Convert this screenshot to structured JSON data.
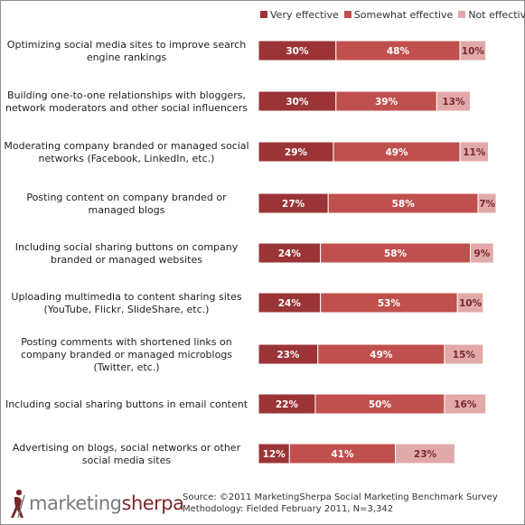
{
  "chart_data": {
    "type": "bar",
    "orientation": "horizontal",
    "stacked": true,
    "categories": [
      [
        "Optimizing social media sites to improve search",
        "engine rankings"
      ],
      [
        "Building one-to-one relationships with bloggers,",
        "network moderators and other social influencers"
      ],
      [
        "Moderating company branded or managed social",
        "networks (Facebook, LinkedIn, etc.)"
      ],
      [
        "Posting content on company branded or",
        "managed blogs"
      ],
      [
        "Including social sharing buttons on company",
        "branded or managed websites"
      ],
      [
        "Uploading multimedia to content sharing sites",
        "(YouTube, Flickr, SlideShare, etc.)"
      ],
      [
        "Posting comments with shortened links on",
        "company branded or managed microblogs",
        "(Twitter, etc.)"
      ],
      [
        "Including social sharing buttons in email content"
      ],
      [
        "Advertising on blogs, social networks or other",
        "social media sites"
      ]
    ],
    "series": [
      {
        "name": "Very effective",
        "color": "#9b3436",
        "values": [
          30,
          30,
          29,
          27,
          24,
          24,
          23,
          22,
          12
        ]
      },
      {
        "name": "Somewhat effective",
        "color": "#c0504d",
        "values": [
          48,
          39,
          49,
          58,
          58,
          53,
          49,
          50,
          41
        ]
      },
      {
        "name": "Not effective",
        "color": "#e1a9aa",
        "values": [
          10,
          13,
          11,
          7,
          9,
          10,
          15,
          16,
          23
        ]
      }
    ],
    "value_suffix": "%",
    "xlim": [
      0,
      100
    ],
    "legend": "top"
  },
  "footer": {
    "logo_part1": "marketing",
    "logo_part2": "sherpa",
    "source_line1": "Source: ©2011 MarketingSherpa Social Marketing Benchmark Survey",
    "source_line2": "Methodology: Fielded February 2011, N=3,342"
  }
}
